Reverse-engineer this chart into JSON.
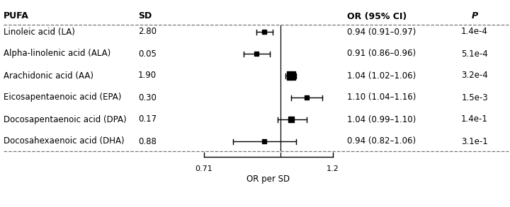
{
  "rows": [
    {
      "pufa": "Linoleic acid (LA)",
      "sd": "2.80",
      "or": 0.94,
      "ci_lo": 0.91,
      "ci_hi": 0.97,
      "or_ci_str": "0.94 (0.91–0.97)",
      "p_str": "1.4e-4"
    },
    {
      "pufa": "Alpha-linolenic acid (ALA)",
      "sd": "0.05",
      "or": 0.91,
      "ci_lo": 0.86,
      "ci_hi": 0.96,
      "or_ci_str": "0.91 (0.86–0.96)",
      "p_str": "5.1e-4"
    },
    {
      "pufa": "Arachidonic acid (AA)",
      "sd": "1.90",
      "or": 1.04,
      "ci_lo": 1.02,
      "ci_hi": 1.06,
      "or_ci_str": "1.04 (1.02–1.06)",
      "p_str": "3.2e-4"
    },
    {
      "pufa": "Eicosapentaenoic acid (EPA)",
      "sd": "0.30",
      "or": 1.1,
      "ci_lo": 1.04,
      "ci_hi": 1.16,
      "or_ci_str": "1.10 (1.04–1.16)",
      "p_str": "1.5e-3"
    },
    {
      "pufa": "Docosapentaenoic acid (DPA)",
      "sd": "0.17",
      "or": 1.04,
      "ci_lo": 0.99,
      "ci_hi": 1.1,
      "or_ci_str": "1.04 (0.99–1.10)",
      "p_str": "1.4e-1"
    },
    {
      "pufa": "Docosahexaenoic acid (DHA)",
      "sd": "0.88",
      "or": 0.94,
      "ci_lo": 0.82,
      "ci_hi": 1.06,
      "or_ci_str": "0.94 (0.82–1.06)",
      "p_str": "3.1e-1"
    }
  ],
  "or_display_min": 0.71,
  "or_display_max": 1.2,
  "null_line": 1.0,
  "xlabel": "OR per SD",
  "header_pufa": "PUFA",
  "header_sd": "SD",
  "header_or": "OR (95% CI)",
  "header_p": "P",
  "dashed_color": "#777777",
  "font_size": 8.5,
  "marker_sizes": [
    4.5,
    4.5,
    8.0,
    4.5,
    5.5,
    4.5
  ]
}
